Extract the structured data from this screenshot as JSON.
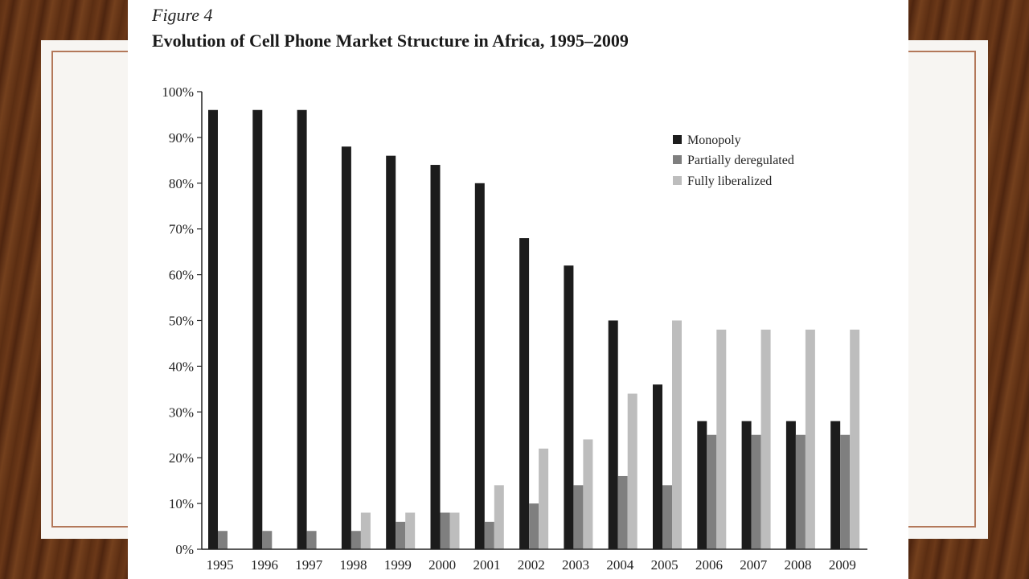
{
  "figure": {
    "label": "Figure 4",
    "title": "Evolution of Cell Phone Market Structure in Africa, 1995–2009"
  },
  "chart_data": {
    "type": "bar",
    "categories": [
      "1995",
      "1996",
      "1997",
      "1998",
      "1999",
      "2000",
      "2001",
      "2002",
      "2003",
      "2004",
      "2005",
      "2006",
      "2007",
      "2008",
      "2009"
    ],
    "series": [
      {
        "name": "Monopoly",
        "color": "#1c1c1c",
        "values": [
          96,
          96,
          96,
          88,
          86,
          84,
          80,
          68,
          62,
          50,
          36,
          28,
          28,
          28,
          28
        ]
      },
      {
        "name": "Partially deregulated",
        "color": "#7f7f7f",
        "values": [
          4,
          4,
          4,
          4,
          6,
          8,
          6,
          10,
          14,
          16,
          14,
          25,
          25,
          25,
          25
        ]
      },
      {
        "name": "Fully liberalized",
        "color": "#bdbdbd",
        "values": [
          0,
          0,
          0,
          8,
          8,
          8,
          14,
          22,
          24,
          34,
          50,
          48,
          48,
          48,
          48
        ]
      }
    ],
    "ylim": [
      0,
      100
    ],
    "yticks": [
      "0%",
      "10%",
      "20%",
      "30%",
      "40%",
      "50%",
      "60%",
      "70%",
      "80%",
      "90%",
      "100%"
    ],
    "legend_position": "top-right",
    "grid": false
  }
}
